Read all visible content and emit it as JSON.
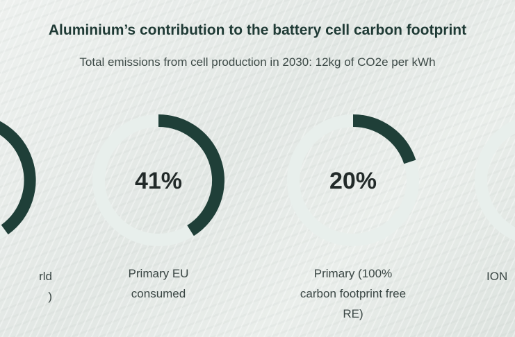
{
  "title": "Aluminium’s contribution to the battery cell carbon footprint",
  "subtitle": "Total emissions from cell production in 2030: 12kg of CO2e per kWh",
  "colors": {
    "track": "#e8efec",
    "fill": "#1f3f38",
    "text": "#222a29"
  },
  "chart_data": {
    "type": "pie",
    "title": "Aluminium’s contribution to the battery cell carbon footprint",
    "subtitle": "Total emissions from cell production in 2030: 12kg of CO2e per kWh",
    "series": [
      {
        "name": "",
        "label": "rld\n)",
        "value": null
      },
      {
        "name": "",
        "label": "Primary EU\nconsumed",
        "value": 41,
        "display": "41%"
      },
      {
        "name": "",
        "label": "Primary (100%\ncarbon footprint free\nRE)",
        "value": 20,
        "display": "20%"
      },
      {
        "name": "",
        "label": "ION",
        "value": null
      }
    ]
  },
  "labels": {
    "left_partial": "rld\n)",
    "eu": "Primary EU\nconsumed",
    "re": "Primary (100%\ncarbon footprint free\nRE)",
    "right_partial": "ION"
  },
  "values": {
    "eu": "41%",
    "re": "20%"
  }
}
